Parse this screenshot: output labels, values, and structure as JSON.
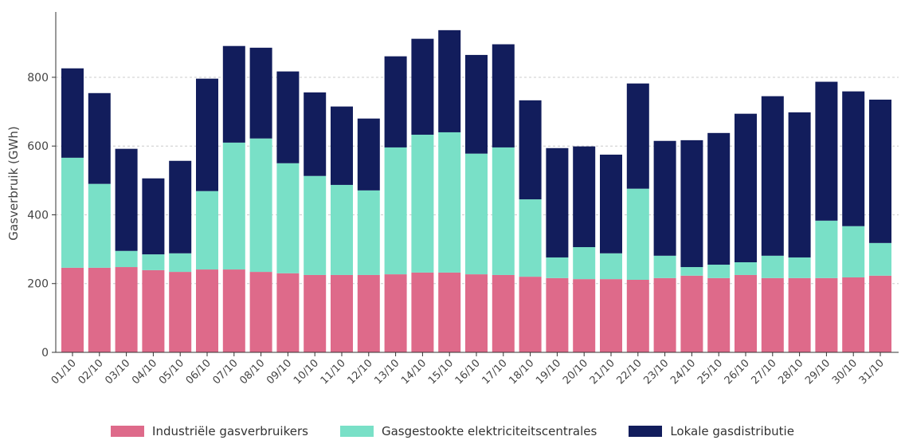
{
  "chart_data": {
    "type": "bar",
    "stacked": true,
    "title": "",
    "xlabel": "",
    "ylabel": "Gasverbruik (GWh)",
    "ylim": [
      0,
      990
    ],
    "yticks": [
      0,
      200,
      400,
      600,
      800
    ],
    "grid": "horizontal dashed",
    "legend_position": "bottom",
    "categories": [
      "01/10",
      "02/10",
      "03/10",
      "04/10",
      "05/10",
      "06/10",
      "07/10",
      "08/10",
      "09/10",
      "10/10",
      "11/10",
      "12/10",
      "13/10",
      "14/10",
      "15/10",
      "16/10",
      "17/10",
      "18/10",
      "19/10",
      "20/10",
      "21/10",
      "22/10",
      "23/10",
      "24/10",
      "25/10",
      "26/10",
      "27/10",
      "28/10",
      "29/10",
      "30/10",
      "31/10"
    ],
    "series": [
      {
        "name": "Industriële gasverbruikers",
        "color": "#de6a8a",
        "values": [
          246,
          246,
          248,
          239,
          234,
          241,
          241,
          234,
          230,
          225,
          225,
          225,
          227,
          232,
          232,
          227,
          225,
          220,
          216,
          213,
          213,
          211,
          216,
          223,
          216,
          225,
          216,
          216,
          216,
          218,
          223
        ]
      },
      {
        "name": "Gasgestookte elektriciteitscentrales",
        "color": "#79e0c7",
        "values": [
          320,
          244,
          47,
          46,
          54,
          228,
          369,
          388,
          320,
          288,
          262,
          246,
          369,
          401,
          408,
          351,
          371,
          225,
          60,
          93,
          75,
          265,
          65,
          25,
          39,
          37,
          65,
          60,
          167,
          149,
          95
        ]
      },
      {
        "name": "Lokale gasdistributie",
        "color": "#121d5c",
        "values": [
          260,
          264,
          297,
          221,
          269,
          327,
          281,
          264,
          267,
          243,
          228,
          209,
          265,
          279,
          297,
          287,
          300,
          288,
          318,
          293,
          287,
          306,
          334,
          369,
          383,
          432,
          464,
          422,
          404,
          392,
          417
        ]
      }
    ]
  }
}
